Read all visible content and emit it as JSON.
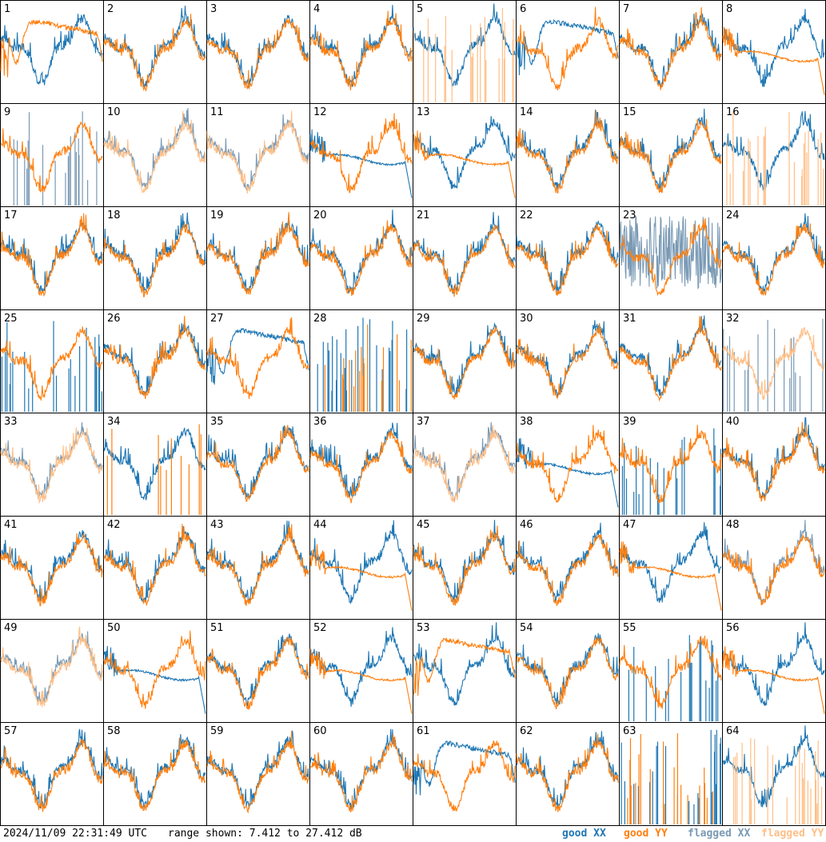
{
  "footer": {
    "timestamp": "2024/11/09 22:31:49 UTC",
    "range_text": "range shown: 7.412 to 27.412 dB",
    "legend": [
      {
        "label": "good XX",
        "color": "#1f77b4"
      },
      {
        "label": "good YY",
        "color": "#ff7f0e"
      },
      {
        "label": "flagged XX",
        "color": "#7a9ab5"
      },
      {
        "label": "flagged YY",
        "color": "#ffbf87"
      }
    ]
  },
  "chart_data": {
    "type": "line",
    "layout": "8x8 grid of small multiples",
    "ylim": [
      7.412,
      27.412
    ],
    "y_unit": "dB",
    "grid": false,
    "panels": [
      {
        "id": 1,
        "xx": "good",
        "yy": "good",
        "xx_shape": "normal",
        "yy_shape": "dip"
      },
      {
        "id": 2,
        "xx": "good",
        "yy": "good",
        "xx_shape": "normal",
        "yy_shape": "normal"
      },
      {
        "id": 3,
        "xx": "good",
        "yy": "good",
        "xx_shape": "normal",
        "yy_shape": "normal"
      },
      {
        "id": 4,
        "xx": "good",
        "yy": "good",
        "xx_shape": "normal",
        "yy_shape": "normal"
      },
      {
        "id": 5,
        "xx": "good",
        "yy": "flagged",
        "xx_shape": "normal",
        "yy_shape": "spiky"
      },
      {
        "id": 6,
        "xx": "good",
        "yy": "good",
        "xx_shape": "dip",
        "yy_shape": "normal"
      },
      {
        "id": 7,
        "xx": "good",
        "yy": "good",
        "xx_shape": "normal",
        "yy_shape": "normal"
      },
      {
        "id": 8,
        "xx": "good",
        "yy": "good",
        "xx_shape": "normal",
        "yy_shape": "flat"
      },
      {
        "id": 9,
        "xx": "flagged",
        "yy": "good",
        "xx_shape": "spiky",
        "yy_shape": "normal"
      },
      {
        "id": 10,
        "xx": "flagged",
        "yy": "flagged",
        "xx_shape": "normal",
        "yy_shape": "normal"
      },
      {
        "id": 11,
        "xx": "flagged",
        "yy": "flagged",
        "xx_shape": "normal",
        "yy_shape": "normal"
      },
      {
        "id": 12,
        "xx": "good",
        "yy": "good",
        "xx_shape": "flat",
        "yy_shape": "normal"
      },
      {
        "id": 13,
        "xx": "good",
        "yy": "good",
        "xx_shape": "normal",
        "yy_shape": "flat"
      },
      {
        "id": 14,
        "xx": "good",
        "yy": "good",
        "xx_shape": "normal",
        "yy_shape": "normal"
      },
      {
        "id": 15,
        "xx": "good",
        "yy": "good",
        "xx_shape": "normal",
        "yy_shape": "normal"
      },
      {
        "id": 16,
        "xx": "good",
        "yy": "flagged",
        "xx_shape": "normal",
        "yy_shape": "spiky"
      },
      {
        "id": 17,
        "xx": "good",
        "yy": "good",
        "xx_shape": "normal",
        "yy_shape": "normal"
      },
      {
        "id": 18,
        "xx": "good",
        "yy": "good",
        "xx_shape": "normal",
        "yy_shape": "normal"
      },
      {
        "id": 19,
        "xx": "good",
        "yy": "good",
        "xx_shape": "normal",
        "yy_shape": "normal"
      },
      {
        "id": 20,
        "xx": "good",
        "yy": "good",
        "xx_shape": "normal",
        "yy_shape": "normal"
      },
      {
        "id": 21,
        "xx": "good",
        "yy": "good",
        "xx_shape": "normal",
        "yy_shape": "normal"
      },
      {
        "id": 22,
        "xx": "good",
        "yy": "good",
        "xx_shape": "normal",
        "yy_shape": "normal"
      },
      {
        "id": 23,
        "xx": "flagged",
        "yy": "good",
        "xx_shape": "noisy",
        "yy_shape": "normal"
      },
      {
        "id": 24,
        "xx": "good",
        "yy": "good",
        "xx_shape": "normal",
        "yy_shape": "normal"
      },
      {
        "id": 25,
        "xx": "good",
        "yy": "good",
        "xx_shape": "spiky",
        "yy_shape": "normal"
      },
      {
        "id": 26,
        "xx": "good",
        "yy": "good",
        "xx_shape": "normal",
        "yy_shape": "normal"
      },
      {
        "id": 27,
        "xx": "good",
        "yy": "good",
        "xx_shape": "dip",
        "yy_shape": "normal"
      },
      {
        "id": 28,
        "xx": "good",
        "yy": "good",
        "xx_shape": "spiky",
        "yy_shape": "spiky"
      },
      {
        "id": 29,
        "xx": "good",
        "yy": "good",
        "xx_shape": "normal",
        "yy_shape": "normal"
      },
      {
        "id": 30,
        "xx": "good",
        "yy": "good",
        "xx_shape": "normal",
        "yy_shape": "normal"
      },
      {
        "id": 31,
        "xx": "good",
        "yy": "good",
        "xx_shape": "normal",
        "yy_shape": "normal"
      },
      {
        "id": 32,
        "xx": "flagged",
        "yy": "flagged",
        "xx_shape": "spiky",
        "yy_shape": "normal"
      },
      {
        "id": 33,
        "xx": "flagged",
        "yy": "flagged",
        "xx_shape": "normal",
        "yy_shape": "normal"
      },
      {
        "id": 34,
        "xx": "good",
        "yy": "good",
        "xx_shape": "normal",
        "yy_shape": "spiky"
      },
      {
        "id": 35,
        "xx": "good",
        "yy": "good",
        "xx_shape": "normal",
        "yy_shape": "normal"
      },
      {
        "id": 36,
        "xx": "good",
        "yy": "good",
        "xx_shape": "normal",
        "yy_shape": "normal"
      },
      {
        "id": 37,
        "xx": "flagged",
        "yy": "flagged",
        "xx_shape": "normal",
        "yy_shape": "normal"
      },
      {
        "id": 38,
        "xx": "good",
        "yy": "good",
        "xx_shape": "flat",
        "yy_shape": "normal"
      },
      {
        "id": 39,
        "xx": "good",
        "yy": "good",
        "xx_shape": "spiky",
        "yy_shape": "normal"
      },
      {
        "id": 40,
        "xx": "good",
        "yy": "good",
        "xx_shape": "normal",
        "yy_shape": "normal"
      },
      {
        "id": 41,
        "xx": "good",
        "yy": "good",
        "xx_shape": "normal",
        "yy_shape": "normal"
      },
      {
        "id": 42,
        "xx": "good",
        "yy": "good",
        "xx_shape": "normal",
        "yy_shape": "normal"
      },
      {
        "id": 43,
        "xx": "good",
        "yy": "good",
        "xx_shape": "normal",
        "yy_shape": "normal"
      },
      {
        "id": 44,
        "xx": "good",
        "yy": "good",
        "xx_shape": "normal",
        "yy_shape": "flat"
      },
      {
        "id": 45,
        "xx": "good",
        "yy": "good",
        "xx_shape": "normal",
        "yy_shape": "normal"
      },
      {
        "id": 46,
        "xx": "good",
        "yy": "good",
        "xx_shape": "normal",
        "yy_shape": "normal"
      },
      {
        "id": 47,
        "xx": "good",
        "yy": "good",
        "xx_shape": "normal",
        "yy_shape": "flat"
      },
      {
        "id": 48,
        "xx": "flagged",
        "yy": "good",
        "xx_shape": "normal",
        "yy_shape": "normal"
      },
      {
        "id": 49,
        "xx": "flagged",
        "yy": "flagged",
        "xx_shape": "normal",
        "yy_shape": "normal"
      },
      {
        "id": 50,
        "xx": "good",
        "yy": "good",
        "xx_shape": "flat",
        "yy_shape": "normal"
      },
      {
        "id": 51,
        "xx": "good",
        "yy": "good",
        "xx_shape": "normal",
        "yy_shape": "normal"
      },
      {
        "id": 52,
        "xx": "good",
        "yy": "good",
        "xx_shape": "normal",
        "yy_shape": "flat"
      },
      {
        "id": 53,
        "xx": "good",
        "yy": "good",
        "xx_shape": "normal",
        "yy_shape": "dip"
      },
      {
        "id": 54,
        "xx": "good",
        "yy": "good",
        "xx_shape": "normal",
        "yy_shape": "normal"
      },
      {
        "id": 55,
        "xx": "good",
        "yy": "good",
        "xx_shape": "spiky",
        "yy_shape": "normal"
      },
      {
        "id": 56,
        "xx": "good",
        "yy": "good",
        "xx_shape": "normal",
        "yy_shape": "flat"
      },
      {
        "id": 57,
        "xx": "good",
        "yy": "good",
        "xx_shape": "normal",
        "yy_shape": "normal"
      },
      {
        "id": 58,
        "xx": "good",
        "yy": "good",
        "xx_shape": "normal",
        "yy_shape": "normal"
      },
      {
        "id": 59,
        "xx": "good",
        "yy": "good",
        "xx_shape": "normal",
        "yy_shape": "normal"
      },
      {
        "id": 60,
        "xx": "good",
        "yy": "good",
        "xx_shape": "normal",
        "yy_shape": "normal"
      },
      {
        "id": 61,
        "xx": "good",
        "yy": "good",
        "xx_shape": "dip",
        "yy_shape": "normal"
      },
      {
        "id": 62,
        "xx": "good",
        "yy": "good",
        "xx_shape": "normal",
        "yy_shape": "normal"
      },
      {
        "id": 63,
        "xx": "good",
        "yy": "good",
        "xx_shape": "spiky",
        "yy_shape": "spiky"
      },
      {
        "id": 64,
        "xx": "good",
        "yy": "flagged",
        "xx_shape": "normal",
        "yy_shape": "spiky"
      }
    ]
  }
}
